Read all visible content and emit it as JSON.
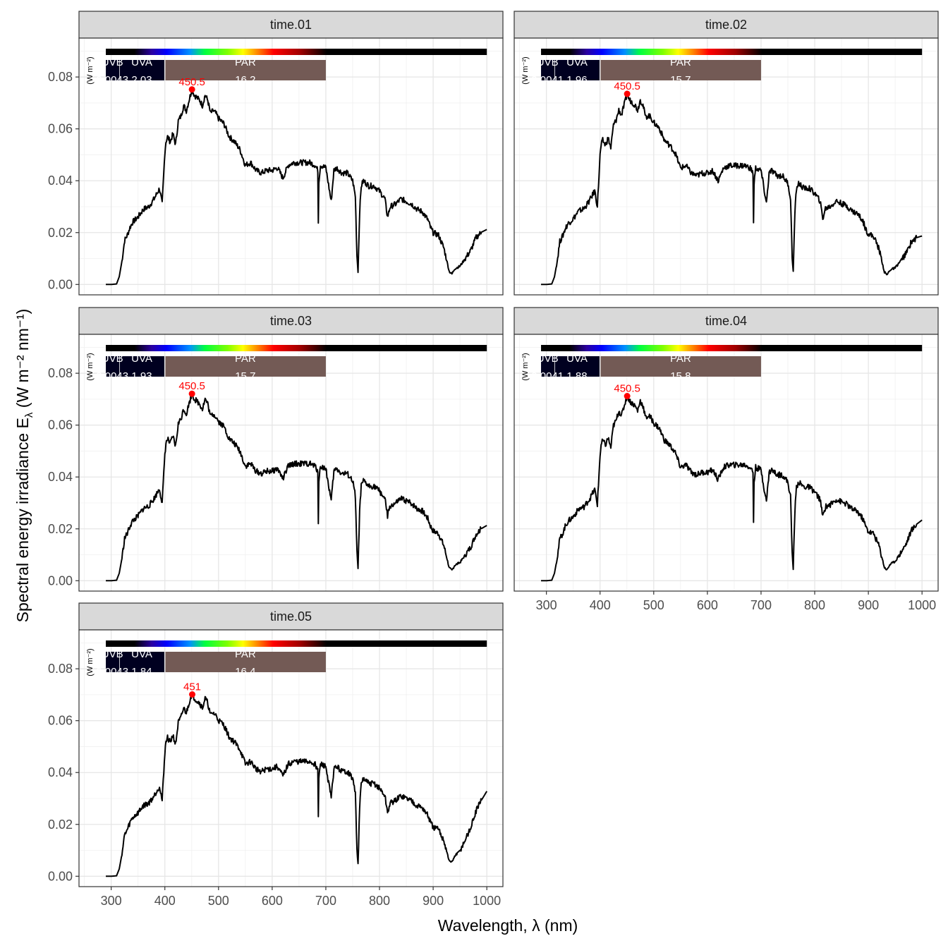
{
  "chart_data": {
    "type": "line",
    "xlabel": "Wavelength, λ (nm)",
    "ylabel": "Spectral  energy  irradiance  E",
    "ylabel_subscript": "λ",
    "ylabel_unit": "(W m⁻² nm⁻¹)",
    "xlim": [
      240,
      1030
    ],
    "ylim": [
      -0.004,
      0.095
    ],
    "x_ticks": [
      300,
      400,
      500,
      600,
      700,
      800,
      900,
      1000
    ],
    "y_ticks": [
      0.0,
      0.02,
      0.04,
      0.06,
      0.08
    ],
    "y_tick_labels": [
      "0.00",
      "0.02",
      "0.04",
      "0.06",
      "0.08"
    ],
    "grid": true,
    "band_unit_label": "(W m⁻²)",
    "band_names": [
      "UVB",
      "UVA",
      "PAR"
    ],
    "colors": {
      "line": "#000000",
      "peak": "#ff0000",
      "par_band": "#735a55",
      "uv_band": "#000020",
      "strip": "#d9d9d9"
    },
    "panels": [
      {
        "name": "time.01",
        "peak_label": "450.5",
        "peak_x": 450.5,
        "peak_y": 0.0752,
        "scale": 1.0,
        "tail": 0.0212,
        "uvb_value": "0.0043",
        "uva_value": "2.03",
        "par_value": "16.2"
      },
      {
        "name": "time.02",
        "peak_label": "450.5",
        "peak_x": 450.5,
        "peak_y": 0.0735,
        "scale": 0.975,
        "tail": 0.0187,
        "uvb_value": "0.0041",
        "uva_value": "1.96",
        "par_value": "15.7"
      },
      {
        "name": "time.03",
        "peak_label": "450.5",
        "peak_x": 450.5,
        "peak_y": 0.0721,
        "scale": 0.96,
        "tail": 0.0213,
        "uvb_value": "0.0043",
        "uva_value": "1.93",
        "par_value": "15.7"
      },
      {
        "name": "time.04",
        "peak_label": "450.5",
        "peak_x": 450.5,
        "peak_y": 0.0712,
        "scale": 0.95,
        "tail": 0.0234,
        "uvb_value": "0.0041",
        "uva_value": "1.88",
        "par_value": "15.8"
      },
      {
        "name": "time.05",
        "peak_label": "451",
        "peak_x": 451,
        "peak_y": 0.0701,
        "scale": 0.94,
        "tail": 0.0328,
        "uvb_value": "0.0043",
        "uva_value": "1.84",
        "par_value": "16.4"
      }
    ],
    "spectrum_base": {
      "x": [
        290,
        300,
        310,
        315,
        320,
        325,
        330,
        335,
        340,
        350,
        360,
        370,
        380,
        390,
        395,
        400,
        402,
        405,
        410,
        415,
        420,
        425,
        430,
        435,
        440,
        445,
        450.5,
        455,
        460,
        465,
        470,
        475,
        480,
        485,
        490,
        495,
        500,
        510,
        520,
        530,
        540,
        550,
        560,
        570,
        580,
        590,
        600,
        610,
        620,
        630,
        640,
        650,
        660,
        670,
        680,
        685,
        686,
        687,
        690,
        700,
        710,
        715,
        720,
        730,
        740,
        750,
        755,
        758,
        760,
        763,
        766,
        770,
        780,
        790,
        800,
        810,
        815,
        820,
        830,
        840,
        850,
        860,
        870,
        880,
        890,
        895,
        900,
        910,
        920,
        930,
        935,
        940,
        950,
        960,
        970,
        980,
        990,
        1000
      ],
      "y": [
        0.0,
        0.0,
        0.0002,
        0.003,
        0.009,
        0.017,
        0.019,
        0.022,
        0.024,
        0.026,
        0.029,
        0.03,
        0.033,
        0.037,
        0.031,
        0.051,
        0.055,
        0.057,
        0.055,
        0.058,
        0.054,
        0.063,
        0.065,
        0.069,
        0.067,
        0.071,
        0.0752,
        0.073,
        0.072,
        0.071,
        0.069,
        0.073,
        0.071,
        0.066,
        0.067,
        0.066,
        0.064,
        0.062,
        0.057,
        0.055,
        0.052,
        0.046,
        0.047,
        0.044,
        0.043,
        0.044,
        0.044,
        0.045,
        0.041,
        0.046,
        0.047,
        0.047,
        0.047,
        0.047,
        0.046,
        0.044,
        0.024,
        0.04,
        0.046,
        0.045,
        0.032,
        0.044,
        0.045,
        0.043,
        0.043,
        0.04,
        0.034,
        0.011,
        0.005,
        0.028,
        0.038,
        0.04,
        0.038,
        0.038,
        0.036,
        0.033,
        0.026,
        0.03,
        0.031,
        0.033,
        0.032,
        0.031,
        0.029,
        0.028,
        0.025,
        0.022,
        0.02,
        0.019,
        0.014,
        0.005,
        0.004,
        0.006,
        0.007,
        0.01,
        0.013,
        0.018,
        0.02,
        0.021
      ]
    }
  }
}
